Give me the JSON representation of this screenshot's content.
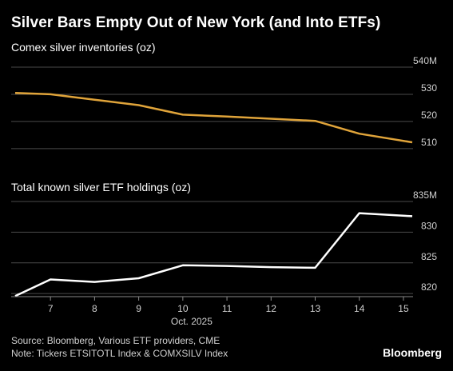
{
  "title": "Silver Bars Empty Out of New York (and Into ETFs)",
  "source": "Source: Bloomberg, Various ETF providers, CME",
  "note": "Note: Tickers ETSITOTL Index & COMXSILV Index",
  "brand": "Bloomberg",
  "colors": {
    "background": "#000000",
    "comex_line": "#e0a43a",
    "etf_line": "#ffffff",
    "grid": "#4a4a4a",
    "tick_text": "#cfcfcf"
  },
  "chart_data": [
    {
      "type": "line",
      "title": "Comex silver inventories (oz)",
      "x": [
        6.2,
        7,
        8,
        9,
        10,
        11,
        12,
        13,
        14,
        15.2
      ],
      "yticks": [
        {
          "value": 540,
          "label": "540M"
        },
        {
          "value": 530,
          "label": "530"
        },
        {
          "value": 520,
          "label": "520"
        },
        {
          "value": 510,
          "label": "510"
        }
      ],
      "ylim": [
        507,
        540
      ],
      "series": [
        {
          "values": [
            530.5,
            530,
            528,
            526,
            522.5,
            521.8,
            521,
            520.2,
            515.5,
            512.3
          ]
        }
      ]
    },
    {
      "type": "line",
      "title": "Total known silver ETF holdings (oz)",
      "x": [
        6.2,
        7,
        8,
        9,
        10,
        11,
        12,
        13,
        14,
        15.2
      ],
      "yticks": [
        {
          "value": 835,
          "label": "835M"
        },
        {
          "value": 830,
          "label": "830"
        },
        {
          "value": 825,
          "label": "825"
        },
        {
          "value": 820,
          "label": "820"
        }
      ],
      "ylim": [
        819.5,
        835
      ],
      "series": [
        {
          "values": [
            819.6,
            822.3,
            821.9,
            822.5,
            824.6,
            824.5,
            824.3,
            824.2,
            833.1,
            832.6
          ]
        }
      ]
    }
  ],
  "x_axis": {
    "ticks": [
      {
        "value": 7,
        "label": "7"
      },
      {
        "value": 8,
        "label": "8"
      },
      {
        "value": 9,
        "label": "9"
      },
      {
        "value": 10,
        "label": "10"
      },
      {
        "value": 11,
        "label": "11"
      },
      {
        "value": 12,
        "label": "12"
      },
      {
        "value": 13,
        "label": "13"
      },
      {
        "value": 14,
        "label": "14"
      },
      {
        "value": 15,
        "label": "15"
      }
    ],
    "period_label": "Oct. 2025"
  }
}
